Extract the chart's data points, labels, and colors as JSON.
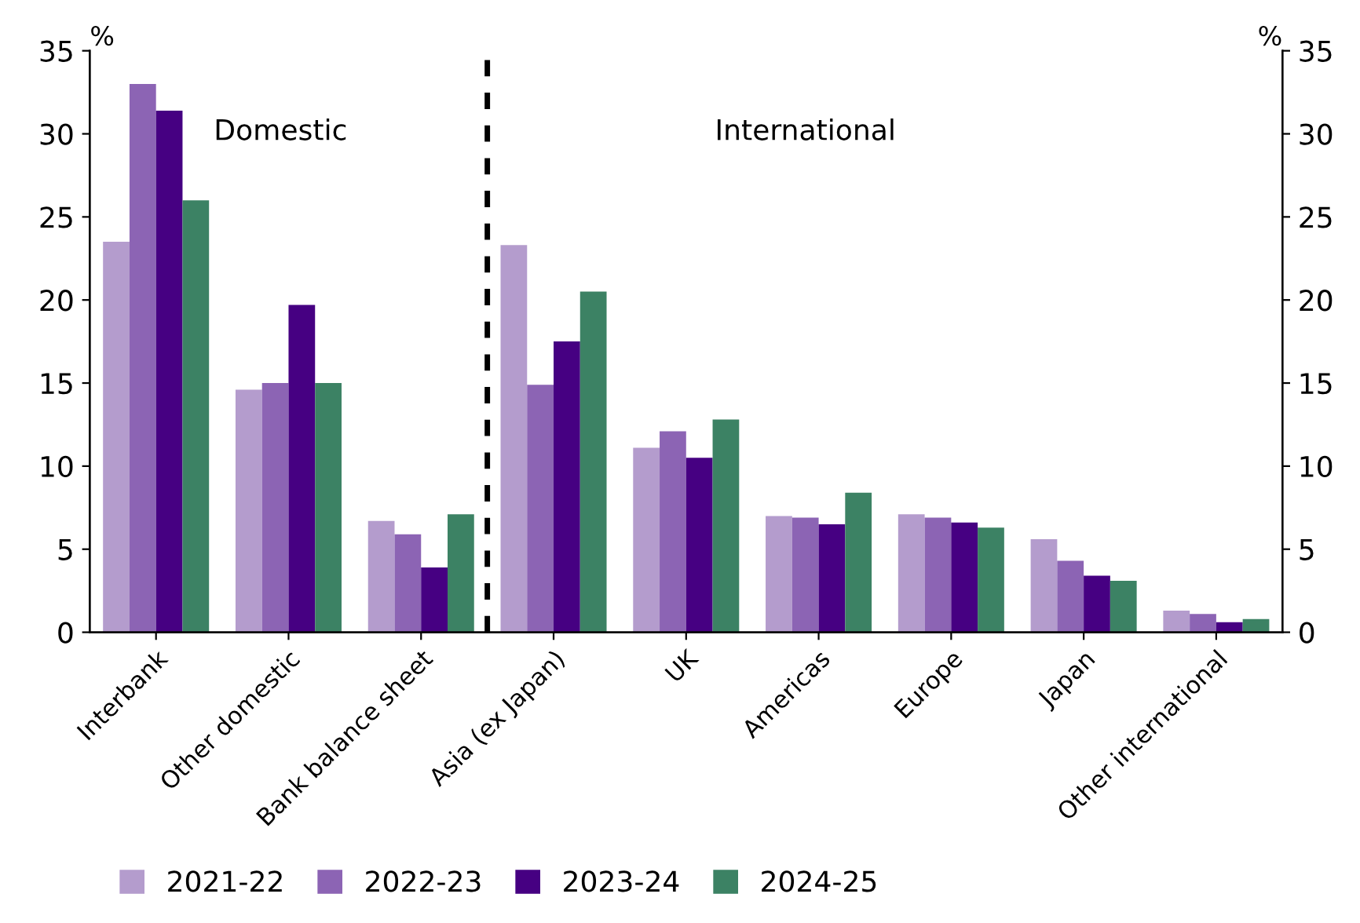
{
  "chart_data": {
    "type": "bar",
    "categories": [
      "Interbank",
      "Other domestic",
      "Bank balance sheet",
      "Asia (ex Japan)",
      "UK",
      "Americas",
      "Europe",
      "Japan",
      "Other international"
    ],
    "series": [
      {
        "name": "2021-22",
        "color": "#b49ccd",
        "values": [
          23.5,
          14.6,
          6.7,
          23.3,
          11.1,
          7.0,
          7.1,
          5.6,
          1.3
        ]
      },
      {
        "name": "2022-23",
        "color": "#8c64b4",
        "values": [
          33.0,
          15.0,
          5.9,
          14.9,
          12.1,
          6.9,
          6.9,
          4.3,
          1.1
        ]
      },
      {
        "name": "2023-24",
        "color": "#460082",
        "values": [
          31.4,
          19.7,
          3.9,
          17.5,
          10.5,
          6.5,
          6.6,
          3.4,
          0.6
        ]
      },
      {
        "name": "2024-25",
        "color": "#3c8264",
        "values": [
          26.0,
          15.0,
          7.1,
          20.5,
          12.8,
          8.4,
          6.3,
          3.1,
          0.8
        ]
      }
    ],
    "ylabel": "%",
    "y2label": "%",
    "ylim": [
      0,
      35
    ],
    "yticks": [
      0,
      5,
      10,
      15,
      20,
      25,
      30,
      35
    ],
    "y2lim": [
      0,
      35
    ],
    "y2ticks": [
      0,
      5,
      10,
      15,
      20,
      25,
      30,
      35
    ],
    "annotations": [
      "Domestic",
      "International"
    ],
    "grid": false,
    "legend": "bottom"
  }
}
